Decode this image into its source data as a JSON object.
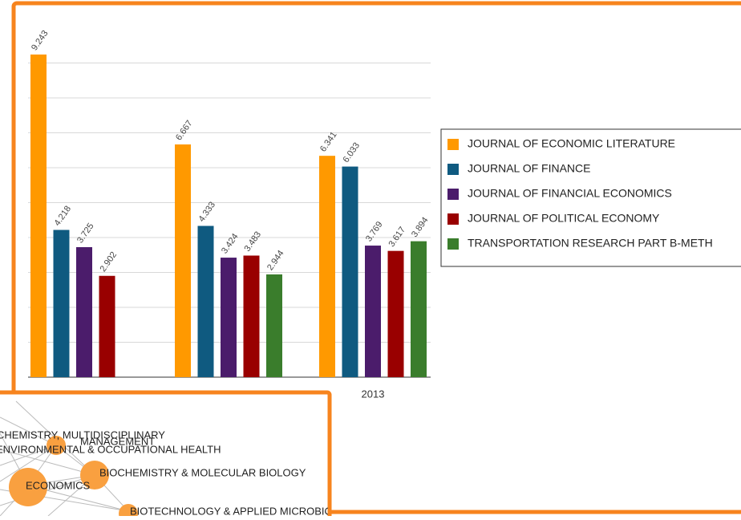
{
  "chart_data": {
    "type": "bar",
    "categories": [
      null,
      null,
      "2013"
    ],
    "series": [
      {
        "name": "JOURNAL OF ECONOMIC LITERATURE",
        "color": "#ff9900",
        "values": [
          9.243,
          6.667,
          6.341
        ]
      },
      {
        "name": "JOURNAL OF FINANCE",
        "color": "#0f5a80",
        "values": [
          4.218,
          4.333,
          6.033
        ]
      },
      {
        "name": "JOURNAL OF FINANCIAL ECONOMICS",
        "color": "#4b1c6b",
        "values": [
          3.725,
          3.424,
          3.769
        ]
      },
      {
        "name": "JOURNAL OF POLITICAL ECONOMY",
        "color": "#990000",
        "values": [
          2.902,
          3.483,
          3.617
        ]
      },
      {
        "name": "TRANSPORTATION RESEARCH PART B-METH",
        "color": "#3a7d2c",
        "values": [
          null,
          2.944,
          3.894
        ]
      }
    ],
    "ylim": [
      0,
      10
    ],
    "yticks": [
      0,
      1,
      2,
      3,
      4,
      5,
      6,
      7,
      8,
      9
    ],
    "grid": true,
    "legend": "right"
  },
  "network": {
    "labels": [
      "CHEMISTRY, MULTIDISCIPLINARY",
      "MANAGEMENT",
      "ENVIRONMENTAL & OCCUPATIONAL HEALTH",
      "BIOCHEMISTRY & MOLECULAR BIOLOGY",
      "ECONOMICS",
      "BIOTECHNOLOGY & APPLIED MICROBIOLOGY"
    ]
  }
}
